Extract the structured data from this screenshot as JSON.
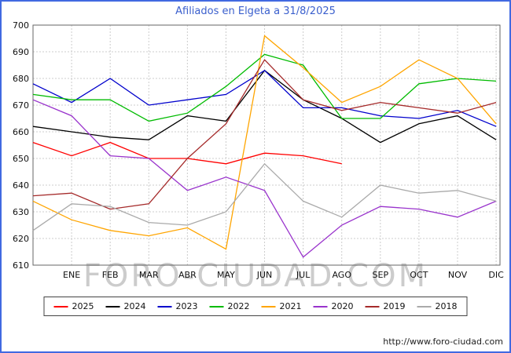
{
  "title": "Afiliados en Elgeta a 31/8/2025",
  "watermark": "FORO-CIUDAD.COM",
  "source_url": "http://www.foro-ciudad.com",
  "colors": {
    "frame": "#4169e1",
    "title": "#3a5fcd",
    "grid": "#cccccc",
    "axis_border": "#666666",
    "tick_text": "#111111",
    "watermark": "#cccccc"
  },
  "chart_data": {
    "type": "line",
    "title": "Afiliados en Elgeta a 31/8/2025",
    "categories": [
      "ENE",
      "FEB",
      "MAR",
      "ABR",
      "MAY",
      "JUN",
      "JUL",
      "AGO",
      "SEP",
      "OCT",
      "NOV",
      "DIC"
    ],
    "xlabel": "",
    "ylabel": "",
    "ylim": [
      610,
      700
    ],
    "ytick_step": 10,
    "grid": true,
    "legend_position": "bottom",
    "series": [
      {
        "name": "2025",
        "color": "#ff0000",
        "start": 656,
        "values": [
          651,
          656,
          650,
          650,
          648,
          652,
          651,
          648
        ]
      },
      {
        "name": "2024",
        "color": "#000000",
        "start": 662,
        "values": [
          660,
          658,
          657,
          666,
          664,
          683,
          672,
          665,
          656,
          663,
          666,
          657
        ]
      },
      {
        "name": "2023",
        "color": "#0000cc",
        "start": 678,
        "values": [
          671,
          680,
          670,
          672,
          674,
          683,
          669,
          669,
          666,
          665,
          668,
          662
        ]
      },
      {
        "name": "2022",
        "color": "#00bb00",
        "start": 674,
        "values": [
          672,
          672,
          664,
          667,
          677,
          689,
          685,
          665,
          665,
          678,
          680,
          679
        ]
      },
      {
        "name": "2021",
        "color": "#ffa500",
        "start": 634,
        "values": [
          627,
          623,
          621,
          624,
          616,
          696,
          684,
          671,
          677,
          687,
          680,
          663
        ]
      },
      {
        "name": "2020",
        "color": "#9933cc",
        "start": 672,
        "values": [
          666,
          651,
          650,
          638,
          643,
          638,
          613,
          625,
          632,
          631,
          628,
          634
        ]
      },
      {
        "name": "2019",
        "color": "#a52a2a",
        "start": 636,
        "values": [
          637,
          631,
          633,
          650,
          663,
          687,
          672,
          668,
          671,
          669,
          667,
          671
        ]
      },
      {
        "name": "2018",
        "color": "#aaaaaa",
        "start": 623,
        "values": [
          633,
          632,
          626,
          625,
          630,
          648,
          634,
          628,
          640,
          637,
          638,
          634
        ]
      }
    ]
  }
}
